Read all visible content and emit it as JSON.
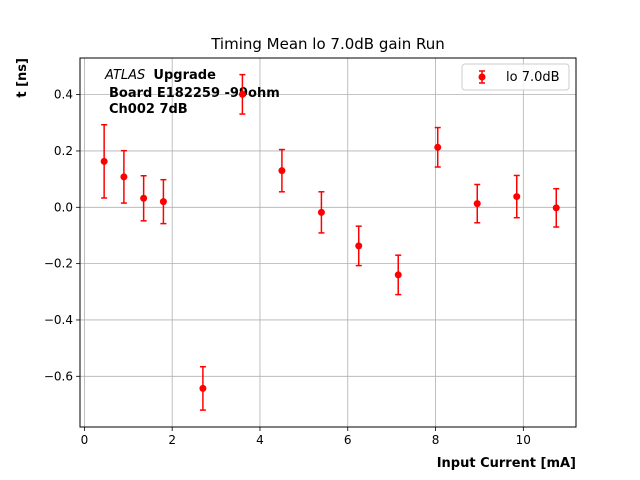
{
  "chart_data": {
    "type": "scatter",
    "title": "Timing Mean lo 7.0dB gain Run",
    "xlabel": "Input Current [mA]",
    "ylabel": "t [ns]",
    "xlim": [
      -0.1,
      11.2
    ],
    "ylim": [
      -0.78,
      0.53
    ],
    "xticks": [
      0,
      2,
      4,
      6,
      8,
      10
    ],
    "yticks": [
      -0.6,
      -0.4,
      -0.2,
      0.0,
      0.2,
      0.4
    ],
    "xtick_labels": [
      "0",
      "2",
      "4",
      "6",
      "8",
      "10"
    ],
    "ytick_labels": [
      "−0.6",
      "−0.4",
      "−0.2",
      "0.0",
      "0.2",
      "0.4"
    ],
    "grid": true,
    "legend_position": "top-right",
    "annotation": {
      "atlas": "ATLAS",
      "upgrade": "Upgrade",
      "line2": "Board E182259 -99ohm",
      "line3": "Ch002 7dB"
    },
    "series": [
      {
        "name": "lo 7.0dB",
        "color": "#ff0000",
        "x": [
          0.45,
          0.9,
          1.35,
          1.8,
          2.7,
          3.6,
          4.5,
          5.4,
          6.25,
          7.15,
          8.05,
          8.95,
          9.85,
          10.75
        ],
        "y": [
          0.163,
          0.108,
          0.032,
          0.02,
          -0.643,
          0.401,
          0.13,
          -0.018,
          -0.137,
          -0.24,
          0.213,
          0.013,
          0.038,
          -0.002
        ],
        "yerr": [
          0.13,
          0.093,
          0.08,
          0.078,
          0.077,
          0.07,
          0.075,
          0.073,
          0.07,
          0.07,
          0.07,
          0.068,
          0.075,
          0.068
        ]
      }
    ]
  }
}
